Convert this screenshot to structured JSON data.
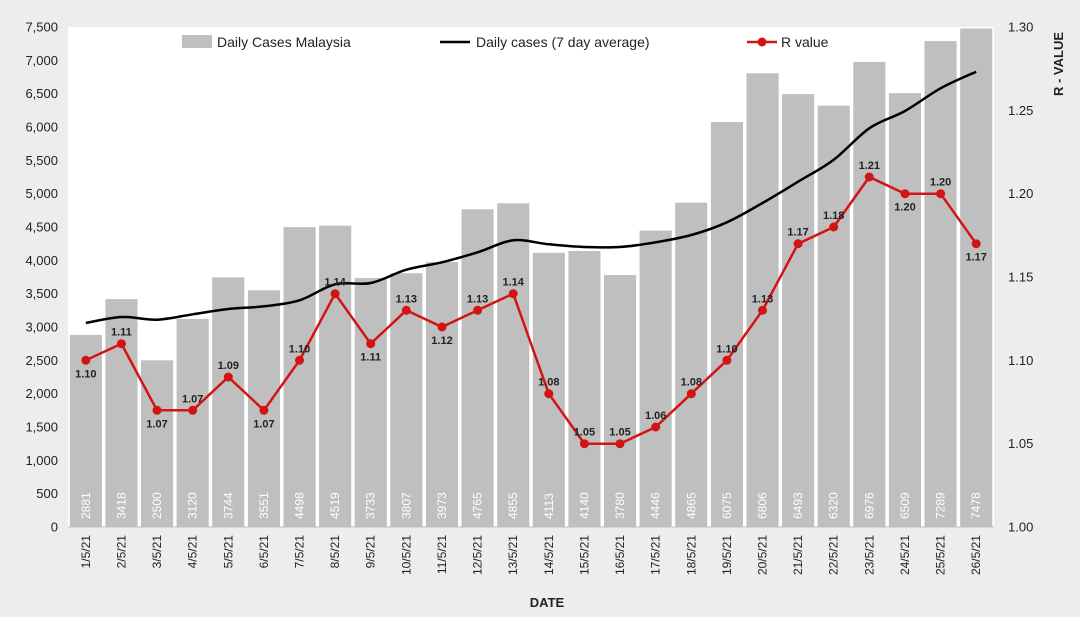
{
  "chart_data": {
    "type": "bar",
    "categories": [
      "1/5/21",
      "2/5/21",
      "3/5/21",
      "4/5/21",
      "5/5/21",
      "6/5/21",
      "7/5/21",
      "8/5/21",
      "9/5/21",
      "10/5/21",
      "11/5/21",
      "12/5/21",
      "13/5/21",
      "14/5/21",
      "15/5/21",
      "16/5/21",
      "17/5/21",
      "18/5/21",
      "19/5/21",
      "20/5/21",
      "21/5/21",
      "22/5/21",
      "23/5/21",
      "24/5/21",
      "25/5/21",
      "26/5/21"
    ],
    "series": [
      {
        "name": "Daily Cases Malaysia",
        "type": "bar",
        "axis": "left",
        "color": "#bfbfbf",
        "values": [
          2881,
          3418,
          2500,
          3120,
          3744,
          3551,
          4498,
          4519,
          3733,
          3807,
          3973,
          4765,
          4855,
          4113,
          4140,
          3780,
          4446,
          4865,
          6075,
          6806,
          6493,
          6320,
          6976,
          6509,
          7289,
          7478
        ],
        "labels": [
          "2881",
          "3418",
          "2500",
          "3120",
          "3744",
          "3551",
          "4498",
          "4519",
          "3733",
          "3807",
          "3973",
          "4765",
          "4855",
          "4113",
          "4140",
          "3780",
          "4446",
          "4865",
          "6075",
          "6806",
          "6493",
          "6320",
          "6976",
          "6509",
          "7289",
          "7478"
        ]
      },
      {
        "name": "Daily cases (7 day average)",
        "type": "line",
        "axis": "left",
        "color": "#000000",
        "values": [
          3060,
          3150,
          3110,
          3190,
          3270,
          3310,
          3400,
          3640,
          3660,
          3860,
          3970,
          4120,
          4300,
          4240,
          4200,
          4200,
          4270,
          4380,
          4570,
          4860,
          5180,
          5510,
          5980,
          6240,
          6580,
          6830
        ]
      },
      {
        "name": "R value",
        "type": "line-markers",
        "axis": "right",
        "color": "#d21414",
        "values": [
          1.1,
          1.11,
          1.07,
          1.07,
          1.09,
          1.07,
          1.1,
          1.14,
          1.11,
          1.13,
          1.12,
          1.13,
          1.14,
          1.08,
          1.05,
          1.05,
          1.06,
          1.08,
          1.1,
          1.13,
          1.17,
          1.18,
          1.21,
          1.2,
          1.2,
          1.17
        ],
        "labels": [
          "1.10",
          "1.11",
          "1.07",
          "1.07",
          "1.09",
          "1.07",
          "1.10",
          "1.14",
          "1.11",
          "1.13",
          "1.12",
          "1.13",
          "1.14",
          "1.08",
          "1.05",
          "1.05",
          "1.06",
          "1.08",
          "1.10",
          "1.13",
          "1.17",
          "1.18",
          "1.21",
          "1.20",
          "1.20",
          "1.17"
        ],
        "label_side": [
          "below",
          "above",
          "below",
          "above",
          "above",
          "below",
          "above",
          "above",
          "below",
          "above",
          "below",
          "above",
          "above",
          "above",
          "above",
          "above",
          "above",
          "above",
          "above",
          "above",
          "above",
          "above",
          "above",
          "below",
          "above",
          "below"
        ]
      }
    ],
    "xlabel": "DATE",
    "ylabel_left": "",
    "ylabel_right": "R - VALUE",
    "ylim_left": [
      0,
      7500
    ],
    "ylim_right": [
      1.0,
      1.3
    ],
    "yticks_left": [
      "0",
      "500",
      "1,000",
      "1,500",
      "2,000",
      "2,500",
      "3,000",
      "3,500",
      "4,000",
      "4,500",
      "5,000",
      "5,500",
      "6,000",
      "6,500",
      "7,000",
      "7,500"
    ],
    "yticks_right": [
      "1.00",
      "1.05",
      "1.10",
      "1.15",
      "1.20",
      "1.25",
      "1.30"
    ],
    "grid": false,
    "legend_position": "top"
  }
}
